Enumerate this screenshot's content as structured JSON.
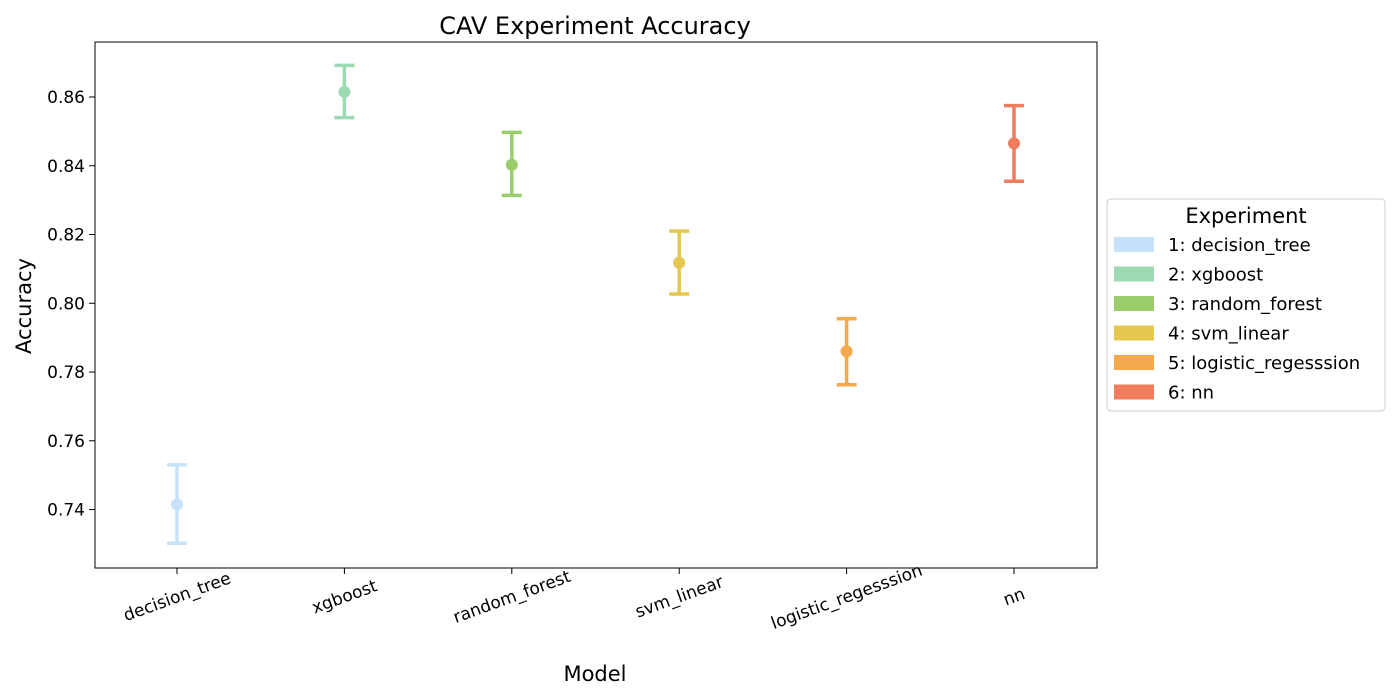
{
  "chart_data": {
    "type": "scatter",
    "title": "CAV Experiment Accuracy",
    "xlabel": "Model",
    "ylabel": "Accuracy",
    "categories": [
      "decision_tree",
      "xgboost",
      "random_forest",
      "svm_linear",
      "logistic_regesssion",
      "nn"
    ],
    "ylim": [
      0.723,
      0.876
    ],
    "yticks": [
      "0.74",
      "0.76",
      "0.78",
      "0.80",
      "0.82",
      "0.84",
      "0.86"
    ],
    "grid": false,
    "error_bars": true,
    "series": [
      {
        "label": "1: decision_tree",
        "category": "decision_tree",
        "value": 0.7415,
        "lower": 0.7302,
        "upper": 0.753,
        "color": "#c6e2fa"
      },
      {
        "label": "2: xgboost",
        "category": "xgboost",
        "value": 0.8615,
        "lower": 0.854,
        "upper": 0.8692,
        "color": "#9dd9b1"
      },
      {
        "label": "3: random_forest",
        "category": "random_forest",
        "value": 0.8403,
        "lower": 0.8314,
        "upper": 0.8497,
        "color": "#9acd6c"
      },
      {
        "label": "4: svm_linear",
        "category": "svm_linear",
        "value": 0.8118,
        "lower": 0.8027,
        "upper": 0.821,
        "color": "#e6c74e"
      },
      {
        "label": "5: logistic_regesssion",
        "category": "logistic_regesssion",
        "value": 0.786,
        "lower": 0.7763,
        "upper": 0.7955,
        "color": "#f5a84c"
      },
      {
        "label": "6: nn",
        "category": "nn",
        "value": 0.8465,
        "lower": 0.8355,
        "upper": 0.8575,
        "color": "#ef7d5e"
      }
    ],
    "legend": {
      "title": "Experiment",
      "placement": "outside-right"
    }
  }
}
